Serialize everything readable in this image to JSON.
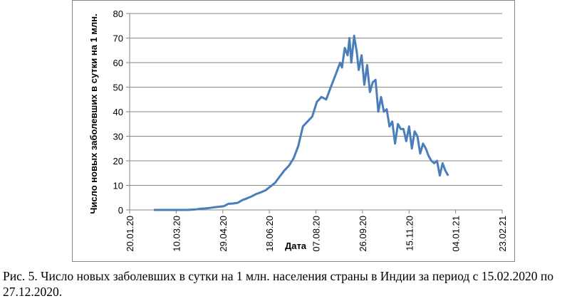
{
  "chart_data": {
    "type": "line",
    "xlabel": "Дата",
    "ylabel": "Число новых заболевших в сутки на 1 млн.",
    "caption": "Рис. 5. Число новых заболевших в сутки на 1 млн. населения страны в Индии за период с 15.02.2020 по 27.12.2020.",
    "x": [
      "2020-02-15",
      "2020-02-20",
      "2020-02-25",
      "2020-03-01",
      "2020-03-06",
      "2020-03-11",
      "2020-03-16",
      "2020-03-21",
      "2020-03-26",
      "2020-03-31",
      "2020-04-05",
      "2020-04-10",
      "2020-04-15",
      "2020-04-20",
      "2020-04-25",
      "2020-04-30",
      "2020-05-05",
      "2020-05-10",
      "2020-05-15",
      "2020-05-20",
      "2020-05-25",
      "2020-05-30",
      "2020-06-04",
      "2020-06-09",
      "2020-06-14",
      "2020-06-19",
      "2020-06-24",
      "2020-06-29",
      "2020-07-04",
      "2020-07-09",
      "2020-07-14",
      "2020-07-19",
      "2020-07-24",
      "2020-07-29",
      "2020-08-03",
      "2020-08-08",
      "2020-08-13",
      "2020-08-18",
      "2020-08-23",
      "2020-08-28",
      "2020-09-02",
      "2020-09-04",
      "2020-09-07",
      "2020-09-10",
      "2020-09-12",
      "2020-09-14",
      "2020-09-17",
      "2020-09-20",
      "2020-09-22",
      "2020-09-25",
      "2020-09-28",
      "2020-10-01",
      "2020-10-04",
      "2020-10-07",
      "2020-10-10",
      "2020-10-13",
      "2020-10-16",
      "2020-10-19",
      "2020-10-22",
      "2020-10-25",
      "2020-10-28",
      "2020-10-31",
      "2020-11-03",
      "2020-11-06",
      "2020-11-09",
      "2020-11-12",
      "2020-11-15",
      "2020-11-18",
      "2020-11-21",
      "2020-11-24",
      "2020-11-27",
      "2020-11-30",
      "2020-12-03",
      "2020-12-06",
      "2020-12-09",
      "2020-12-12",
      "2020-12-15",
      "2020-12-18",
      "2020-12-21",
      "2020-12-24",
      "2020-12-27"
    ],
    "series": [
      {
        "name": "Индия",
        "color": "#4a7ebb",
        "values": [
          0,
          0,
          0,
          0,
          0,
          0,
          0,
          0,
          0.1,
          0.2,
          0.5,
          0.6,
          0.8,
          1.1,
          1.3,
          1.5,
          2.5,
          2.6,
          2.9,
          4,
          4.7,
          5.5,
          6.5,
          7.2,
          8,
          9.5,
          11,
          13.5,
          16,
          18,
          21,
          26,
          34,
          36,
          38,
          44,
          46,
          45,
          50,
          55,
          60,
          58,
          66,
          63,
          70,
          60,
          71,
          64,
          57,
          63,
          51,
          59,
          48,
          52,
          53,
          40,
          46,
          40,
          41,
          34,
          36,
          27,
          35,
          33,
          33,
          28,
          34,
          25,
          32,
          30,
          23,
          27,
          25,
          22,
          20,
          19,
          20,
          14,
          19,
          16,
          14
        ]
      }
    ],
    "xlim": [
      "2020-01-20",
      "2021-02-23"
    ],
    "xticks": [
      {
        "value": "2020-01-20",
        "label": "20.01.20"
      },
      {
        "value": "2020-03-10",
        "label": "10.03.20"
      },
      {
        "value": "2020-04-29",
        "label": "29.04.20"
      },
      {
        "value": "2020-06-18",
        "label": "18.06.20"
      },
      {
        "value": "2020-08-07",
        "label": "07.08.20"
      },
      {
        "value": "2020-09-26",
        "label": "26.09.20"
      },
      {
        "value": "2020-11-15",
        "label": "15.11.20"
      },
      {
        "value": "2021-01-04",
        "label": "04.01.21"
      },
      {
        "value": "2021-02-23",
        "label": "23.02.21"
      }
    ],
    "ylim": [
      0,
      80
    ],
    "yticks": [
      0,
      10,
      20,
      30,
      40,
      50,
      60,
      70,
      80
    ],
    "grid": true
  }
}
